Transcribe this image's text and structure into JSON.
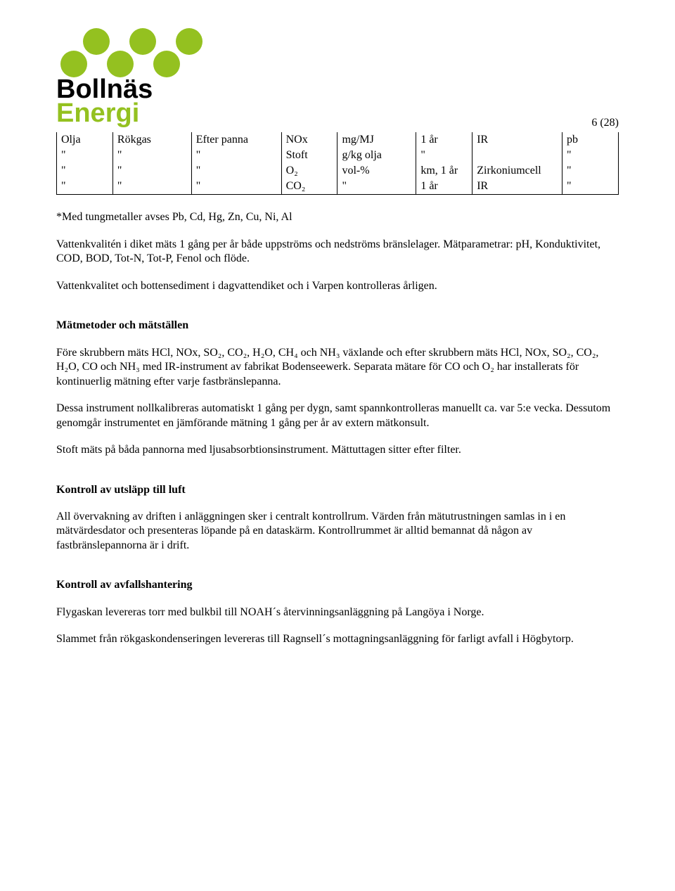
{
  "logo": {
    "line1": "Bollnäs",
    "line2": "Energi",
    "dot_color": "#94c120"
  },
  "page_number": "6 (28)",
  "table": {
    "col_widths": [
      "10%",
      "14%",
      "16%",
      "10%",
      "14%",
      "10%",
      "16%",
      "10%"
    ],
    "rows": [
      [
        "Olja",
        "Rökgas",
        "Efter panna",
        "NOx",
        "mg/MJ",
        "1 år",
        "IR",
        "pb"
      ],
      [
        "\"",
        "\"",
        "\"",
        "Stoft",
        "g/kg olja",
        "\"",
        "",
        "\""
      ],
      [
        "\"",
        "\"",
        "\"",
        "O₂",
        "vol-%",
        "km, 1 år",
        "Zirkoniumcell",
        "\""
      ],
      [
        "\"",
        "\"",
        "\"",
        "CO₂",
        "\"",
        "1 år",
        "IR",
        "\""
      ]
    ]
  },
  "para1": "*Med tungmetaller avses Pb, Cd, Hg, Zn, Cu, Ni, Al",
  "para2": "Vattenkvalitén i diket mäts 1 gång per år både uppströms och nedströms bränslelager. Mätparametrar: pH, Konduktivitet, COD, BOD, Tot-N, Tot-P, Fenol och flöde.",
  "para3": "Vattenkvalitet och bottensediment i dagvattendiket och i Varpen kontrolleras årligen.",
  "heading1": "Mätmetoder och mätställen",
  "para4": "Före skrubbern mäts HCl, NOx, SO₂, CO₂, H₂O, CH₄ och NH₃ växlande och efter skrubbern mäts HCl, NOx, SO₂, CO₂, H₂O, CO och NH₃ med IR-instrument av fabrikat Bodenseewerk. Separata mätare för CO och O₂ har installerats för kontinuerlig mätning efter varje fastbränslepanna.",
  "para5": "Dessa instrument nollkalibreras automatiskt 1 gång per dygn, samt spannkontrolleras manuellt ca. var 5:e vecka.  Dessutom genomgår instrumentet en jämförande mätning 1 gång per år av extern mätkonsult.",
  "para6": "Stoft mäts på båda pannorna med ljusabsorbtionsinstrument. Mättuttagen sitter efter filter.",
  "heading2": "Kontroll av utsläpp till luft",
  "para7": "All övervakning av driften i anläggningen sker i centralt kontrollrum. Värden från mätutrustningen samlas in i en mätvärdesdator och presenteras löpande på en dataskärm. Kontrollrummet är alltid bemannat då någon av fastbränslepannorna är i drift.",
  "heading3": "Kontroll av avfallshantering",
  "para8": "Flygaskan levereras torr med bulkbil till NOAH´s återvinningsanläggning på Langöya i  Norge.",
  "para9": "Slammet från rökgaskondenseringen levereras till Ragnsell´s mottagningsanläggning för farligt avfall i Högbytorp."
}
